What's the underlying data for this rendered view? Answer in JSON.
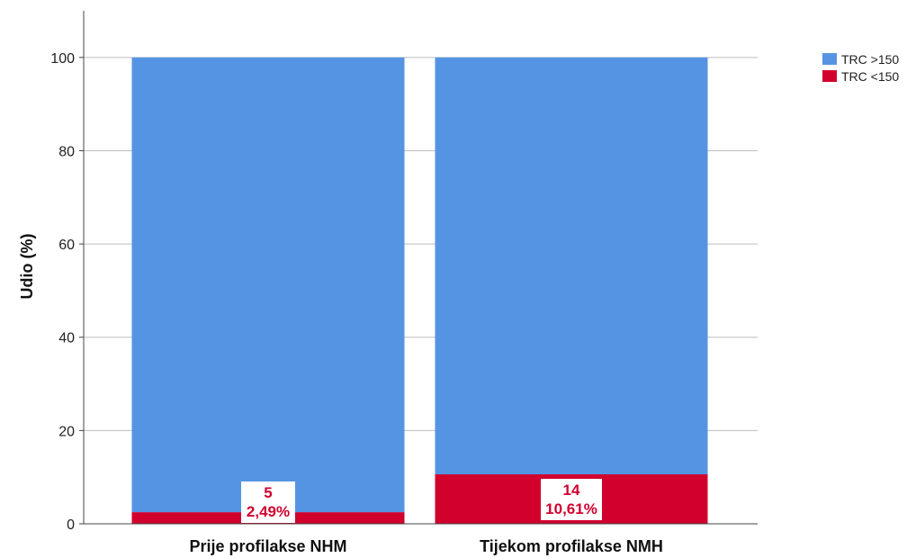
{
  "chart_data": {
    "type": "bar",
    "stacked": true,
    "categories": [
      "Prije profilakse NHM",
      "Tijekom profilakse NMH"
    ],
    "series": [
      {
        "name": "TRC >150",
        "color": "#5594E2",
        "values": [
          97.51,
          89.39
        ]
      },
      {
        "name": "TRC <150",
        "color": "#D1002D",
        "values": [
          2.49,
          10.61
        ]
      }
    ],
    "data_labels": [
      {
        "series": "TRC <150",
        "category": "Prije profilakse NHM",
        "count": "5",
        "percent": "2,49%"
      },
      {
        "series": "TRC <150",
        "category": "Tijekom profilakse NMH",
        "count": "14",
        "percent": "10,61%"
      }
    ],
    "title": "",
    "xlabel": "",
    "ylabel": "Udio (%)",
    "ylim": [
      0,
      110
    ],
    "yticks": [
      0,
      20,
      40,
      60,
      80,
      100
    ],
    "grid": true,
    "legend_position": "top-right",
    "label_color": "#D1002D"
  }
}
